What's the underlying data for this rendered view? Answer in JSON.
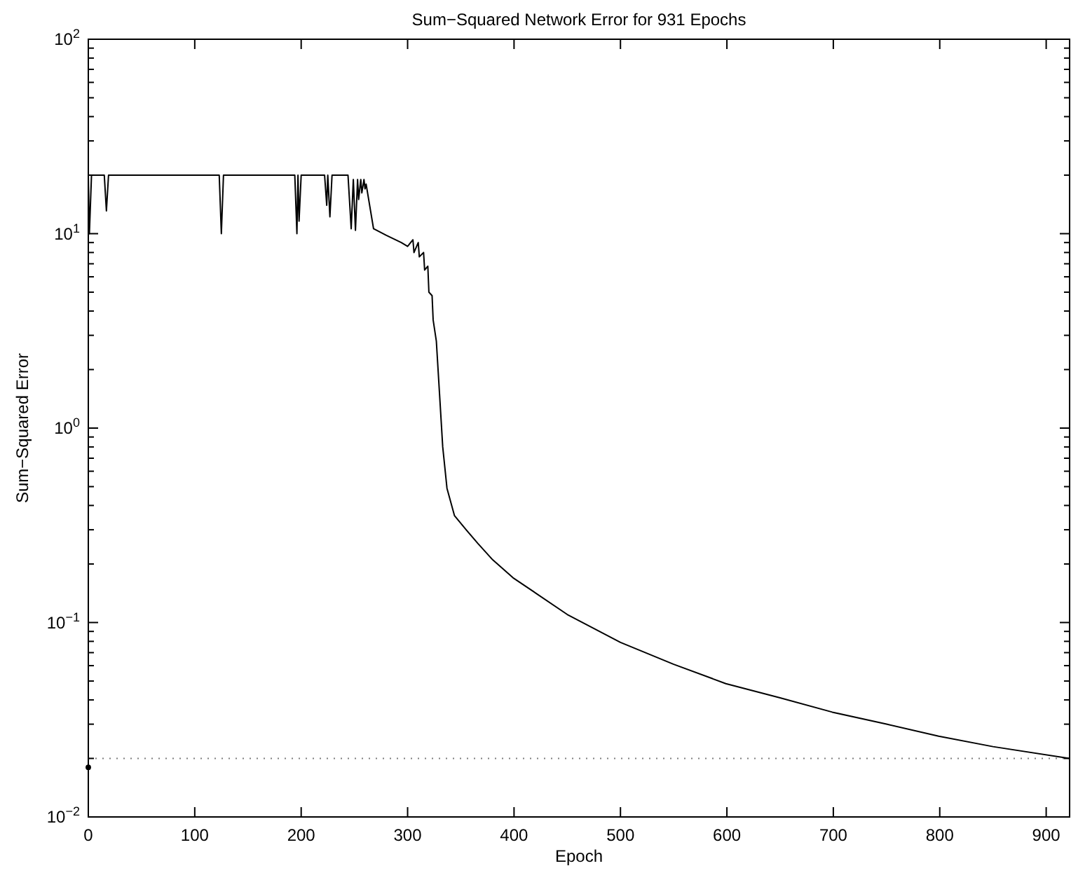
{
  "chart_data": {
    "type": "line",
    "title": "Sum−Squared Network Error for 931 Epochs",
    "xlabel": "Epoch",
    "ylabel": "Sum−Squared Error",
    "log": "y",
    "grid": false,
    "line_style": "solid",
    "marker": "none",
    "xlim": [
      0,
      922
    ],
    "xticks": [
      0,
      100,
      200,
      300,
      400,
      500,
      600,
      700,
      800,
      900
    ],
    "ylim": [
      0.01,
      100
    ],
    "yticks": [
      {
        "value": 0.01,
        "label": "10$^{−2}$"
      },
      {
        "value": 0.02,
        "label": null
      },
      {
        "value": 0.03,
        "label": null
      },
      {
        "value": 0.04,
        "label": null
      },
      {
        "value": 0.05,
        "label": null
      },
      {
        "value": 0.06,
        "label": null
      },
      {
        "value": 0.07,
        "label": null
      },
      {
        "value": 0.08,
        "label": null
      },
      {
        "value": 0.09,
        "label": null
      },
      {
        "value": 0.1,
        "label": "10$^{−1}$"
      },
      {
        "value": 0.2,
        "label": null
      },
      {
        "value": 0.3,
        "label": null
      },
      {
        "value": 0.4,
        "label": null
      },
      {
        "value": 0.5,
        "label": null
      },
      {
        "value": 0.6,
        "label": null
      },
      {
        "value": 0.7,
        "label": null
      },
      {
        "value": 0.8,
        "label": null
      },
      {
        "value": 0.9,
        "label": null
      },
      {
        "value": 1,
        "label": "10$^{0}$"
      },
      {
        "value": 2,
        "label": null
      },
      {
        "value": 3,
        "label": null
      },
      {
        "value": 4,
        "label": null
      },
      {
        "value": 5,
        "label": null
      },
      {
        "value": 6,
        "label": null
      },
      {
        "value": 7,
        "label": null
      },
      {
        "value": 8,
        "label": null
      },
      {
        "value": 9,
        "label": null
      },
      {
        "value": 10,
        "label": "10$^{1}$"
      },
      {
        "value": 20,
        "label": null
      },
      {
        "value": 30,
        "label": null
      },
      {
        "value": 40,
        "label": null
      },
      {
        "value": 50,
        "label": null
      },
      {
        "value": 60,
        "label": null
      },
      {
        "value": 70,
        "label": null
      },
      {
        "value": 80,
        "label": null
      },
      {
        "value": 90,
        "label": null
      },
      {
        "value": 100,
        "label": "10$^{2}$"
      }
    ],
    "ref_lines": [
      {
        "axis": "y",
        "value": 0.02,
        "color": "#808080",
        "line_style": "dotted"
      }
    ],
    "series": [
      {
        "color": "#000000",
        "x": [
          0,
          1,
          3,
          15,
          17,
          19,
          123,
          125,
          127,
          194,
          196,
          197,
          198,
          200,
          222,
          224,
          225,
          227,
          229,
          244,
          247,
          249,
          251,
          253,
          254,
          256,
          257,
          259,
          260,
          261,
          268,
          280,
          294,
          300,
          305,
          306,
          310,
          311,
          315,
          316,
          319,
          320,
          323,
          324,
          327,
          330,
          333,
          337,
          344,
          355,
          366,
          380,
          399,
          450,
          500,
          550,
          599,
          650,
          699,
          750,
          799,
          850,
          922
        ],
        "values": [
          20,
          10,
          20,
          20,
          13.1,
          20,
          20,
          10,
          20,
          20,
          10,
          20,
          11.6,
          20,
          20,
          14,
          20,
          12.2,
          20,
          20,
          10.6,
          19,
          10.4,
          19,
          15,
          19,
          16.2,
          19,
          17,
          18,
          10.6,
          9.8,
          9.0,
          8.6,
          9.3,
          8.0,
          9.0,
          7.6,
          8.0,
          6.5,
          6.8,
          5.0,
          4.8,
          3.6,
          2.8,
          1.5,
          0.8,
          0.49,
          0.355,
          0.3,
          0.255,
          0.21,
          0.17,
          0.11,
          0.079,
          0.061,
          0.0485,
          0.041,
          0.0346,
          0.03,
          0.026,
          0.023,
          0.02
        ]
      },
      {
        "type": "scatter",
        "color": "#000000",
        "marker": "circle",
        "x": [
          0
        ],
        "values": [
          0.018
        ]
      }
    ]
  }
}
